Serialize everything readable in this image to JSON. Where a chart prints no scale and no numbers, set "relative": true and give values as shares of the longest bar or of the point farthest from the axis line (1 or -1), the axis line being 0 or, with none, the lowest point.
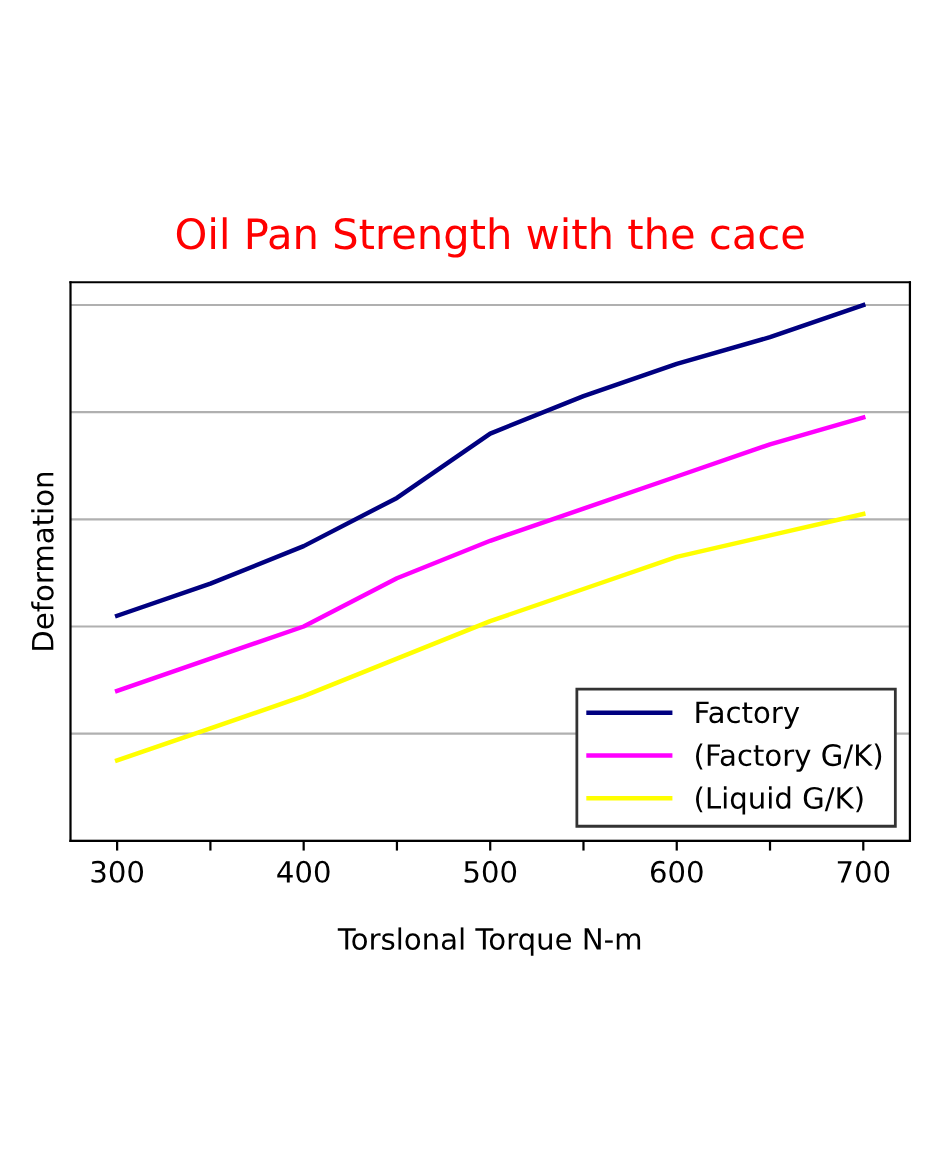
{
  "chart_data": {
    "type": "line",
    "title": "Oil Pan Strength with the cace",
    "xlabel": "Torslonal Torque N-m",
    "ylabel": "Deformation",
    "relative": true,
    "x": [
      300,
      350,
      400,
      450,
      500,
      550,
      600,
      650,
      700
    ],
    "xlim": [
      275,
      725
    ],
    "xticks": [
      300,
      {
        "value": 350,
        "label": null
      },
      400,
      {
        "value": 450,
        "label": null
      },
      500,
      {
        "value": 550,
        "label": null
      },
      600,
      {
        "value": 650,
        "label": null
      },
      700
    ],
    "series": [
      {
        "name": "Factory",
        "color": "#000080",
        "values": [
          0.42,
          0.48,
          0.55,
          0.64,
          0.76,
          0.83,
          0.89,
          0.94,
          1.0
        ]
      },
      {
        "name": "(Factory G/K)",
        "color": "#ff00ff",
        "values": [
          0.28,
          0.34,
          0.4,
          0.49,
          0.56,
          0.62,
          0.68,
          0.74,
          0.79
        ]
      },
      {
        "name": "(Liquid G/K)",
        "color": "#ffff00",
        "values": [
          0.15,
          0.21,
          0.27,
          0.34,
          0.41,
          0.47,
          0.53,
          0.57,
          0.61
        ]
      }
    ],
    "grid": "y",
    "legend": "bottom right",
    "marker": "none",
    "line_style": "solid"
  }
}
